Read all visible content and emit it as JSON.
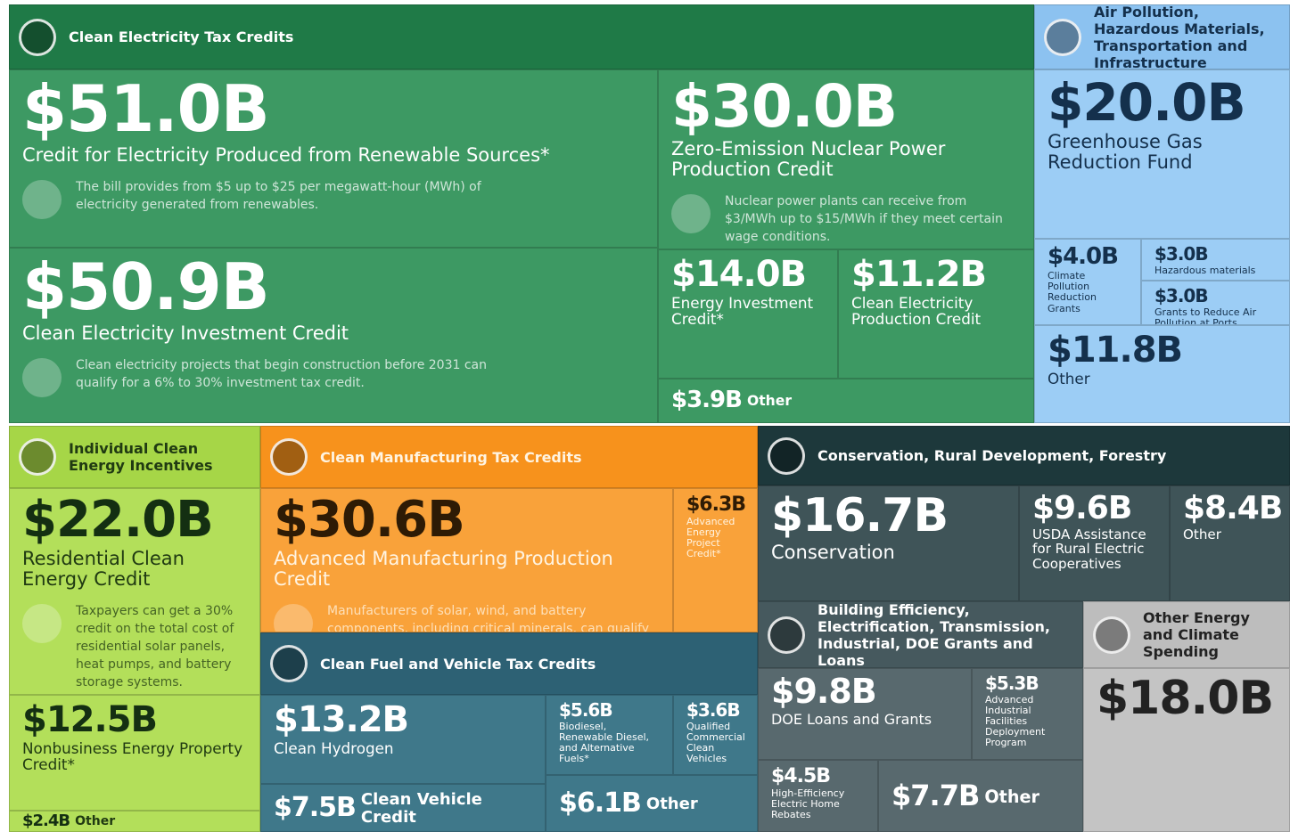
{
  "groups": [
    {
      "title": "Clean Electricity Tax Credits",
      "color": "#1f7a47",
      "tile_color": "#3d9963",
      "tiles": [
        {
          "value": "$51.0B",
          "label": "Credit for Electricity Produced from Renewable Sources*",
          "description": "The bill provides from $5 up to $25 per megawatt-hour (MWh) of electricity generated from renewables."
        },
        {
          "value": "$50.9B",
          "label": "Clean Electricity Investment Credit",
          "description": "Clean electricity projects that begin construction before 2031 can qualify for a 6% to 30% investment tax credit."
        },
        {
          "value": "$30.0B",
          "label": "Zero-Emission Nuclear Power Production Credit",
          "description": "Nuclear power plants can receive from $3/MWh up to $15/MWh if they meet certain wage conditions."
        },
        {
          "value": "$14.0B",
          "label": "Energy Investment Credit*"
        },
        {
          "value": "$11.2B",
          "label": "Clean Electricity Production Credit"
        },
        {
          "value": "$3.9B",
          "label": "Other"
        }
      ]
    },
    {
      "title": "Air Pollution, Hazardous Materials, Transportation and Infrastructure",
      "color": "#8cc2f0",
      "tile_color": "#9ccdf5",
      "tiles": [
        {
          "value": "$20.0B",
          "label": "Greenhouse Gas Reduction Fund"
        },
        {
          "value": "$4.0B",
          "label": "Climate Pollution Reduction Grants"
        },
        {
          "value": "$3.0B",
          "label": "Hazardous materials"
        },
        {
          "value": "$3.0B",
          "label": "Grants to Reduce Air Pollution at Ports"
        },
        {
          "value": "$11.8B",
          "label": "Other"
        }
      ]
    },
    {
      "title": "Individual Clean Energy Incentives",
      "color": "#a6d647",
      "tile_color": "#b3df5a",
      "tiles": [
        {
          "value": "$22.0B",
          "label": "Residential Clean Energy Credit",
          "description": "Taxpayers can get a 30% credit on the total cost of residential solar panels, heat pumps, and battery storage systems."
        },
        {
          "value": "$12.5B",
          "label": "Nonbusiness Energy Property Credit*"
        },
        {
          "value": "$2.4B",
          "label": "Other"
        }
      ]
    },
    {
      "title": "Clean Manufacturing Tax Credits",
      "color": "#f7921c",
      "tile_color": "#f9a23a",
      "tiles": [
        {
          "value": "$30.6B",
          "label": "Advanced Manufacturing Production Credit",
          "description": "Manufacturers of solar, wind, and battery components, including critical minerals, can qualify for this production tax credit."
        },
        {
          "value": "$6.3B",
          "label": "Advanced Energy Project Credit*"
        }
      ]
    },
    {
      "title": "Clean Fuel and Vehicle Tax Credits",
      "color": "#2d6174",
      "tile_color": "#3f788a",
      "tiles": [
        {
          "value": "$13.2B",
          "label": "Clean Hydrogen"
        },
        {
          "value": "$7.5B",
          "label": "Clean Vehicle Credit"
        },
        {
          "value": "$5.6B",
          "label": "Biodiesel, Renewable Diesel, and Alternative Fuels*"
        },
        {
          "value": "$3.6B",
          "label": "Qualified Commercial Clean Vehicles"
        },
        {
          "value": "$6.1B",
          "label": "Other"
        }
      ]
    },
    {
      "title": "Conservation, Rural Development, Forestry",
      "color": "#1d383b",
      "tile_color": "#3f5458",
      "tiles": [
        {
          "value": "$16.7B",
          "label": "Conservation"
        },
        {
          "value": "$9.6B",
          "label": "USDA Assistance for Rural Electric Cooperatives"
        },
        {
          "value": "$8.4B",
          "label": "Other"
        }
      ]
    },
    {
      "title": "Building Efficiency, Electrification, Transmission, Industrial, DOE Grants and Loans",
      "color": "#46595e",
      "tile_color": "#58696e",
      "tiles": [
        {
          "value": "$9.8B",
          "label": "DOE Loans and Grants"
        },
        {
          "value": "$5.3B",
          "label": "Advanced Industrial Facilities Deployment Program"
        },
        {
          "value": "$4.5B",
          "label": "High-Efficiency Electric Home Rebates"
        },
        {
          "value": "$7.7B",
          "label": "Other"
        }
      ]
    },
    {
      "title": "Other Energy and Climate Spending",
      "color": "#bdbdbd",
      "tile_color": "#c4c4c4",
      "tiles": [
        {
          "value": "$18.0B",
          "label": ""
        }
      ]
    }
  ]
}
